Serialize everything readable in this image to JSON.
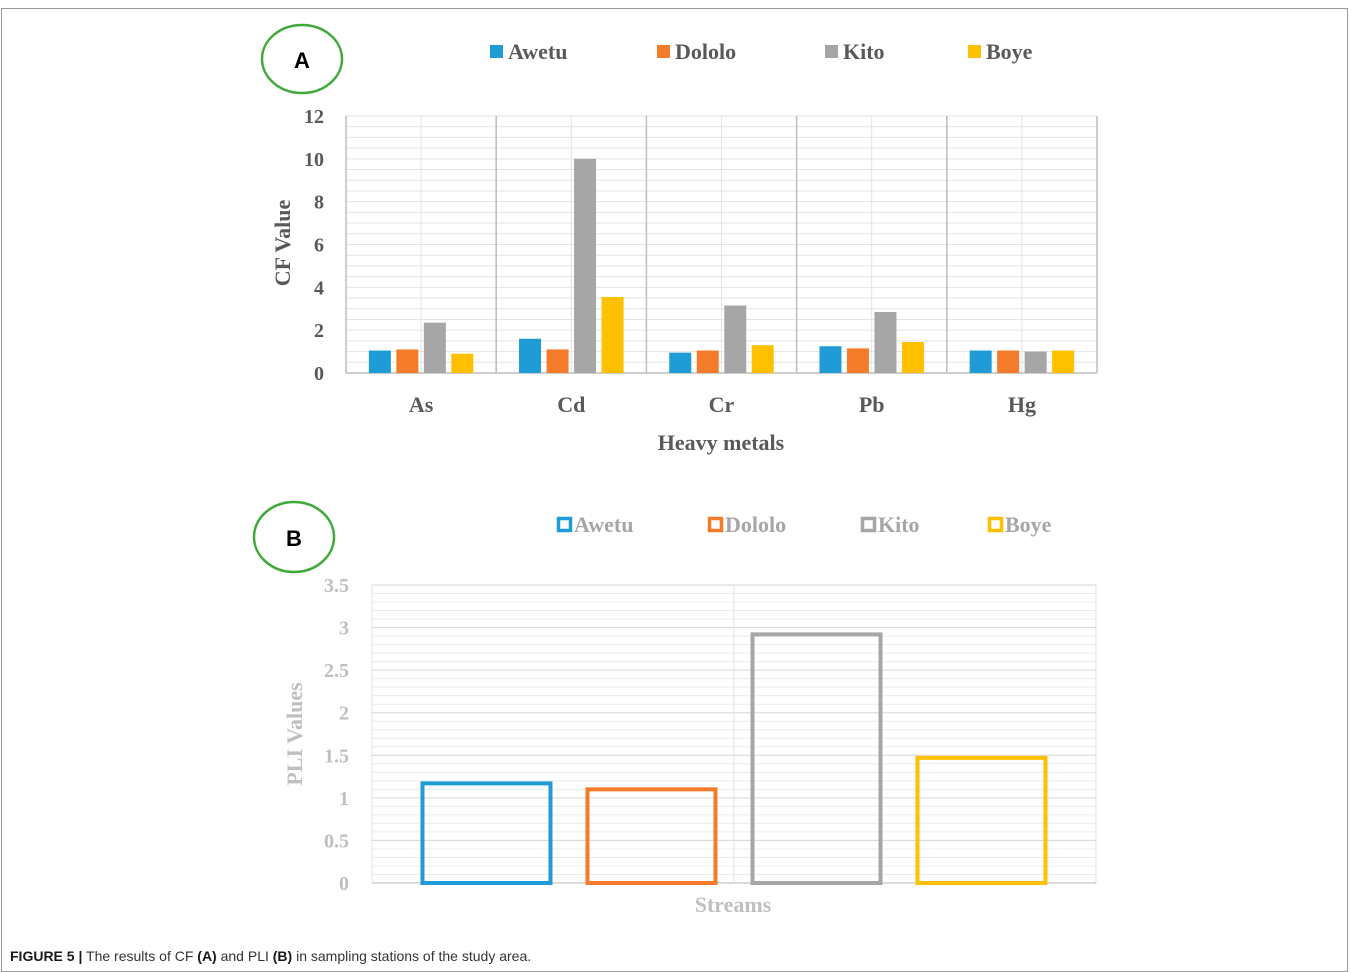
{
  "figure": {
    "caption_label": "FIGURE 5 |",
    "caption_pre": "The results of CF",
    "caption_a": "(A)",
    "caption_mid": "and PLI",
    "caption_b": "(B)",
    "caption_post": "in sampling stations of the study area."
  },
  "colors": {
    "Awetu": "#1f9bd6",
    "Dololo": "#f47b2a",
    "Kito": "#a6a6a6",
    "Boye": "#ffc000",
    "panel_circle": "#3fa93a",
    "grid": "#dcdcdc",
    "text": "#595959"
  },
  "chart_data": [
    {
      "panel": "A",
      "type": "bar",
      "title": "",
      "xlabel": "Heavy metals",
      "ylabel": "CF Value",
      "ylim": [
        0,
        12
      ],
      "yticks": [
        "0",
        "2",
        "4",
        "6",
        "8",
        "10",
        "12"
      ],
      "grid": true,
      "legend_position": "top",
      "categories": [
        "As",
        "Cd",
        "Cr",
        "Pb",
        "Hg"
      ],
      "series": [
        {
          "name": "Awetu",
          "values": [
            1.05,
            1.6,
            0.95,
            1.25,
            1.05
          ]
        },
        {
          "name": "Dololo",
          "values": [
            1.1,
            1.1,
            1.05,
            1.15,
            1.05
          ]
        },
        {
          "name": "Kito",
          "values": [
            2.35,
            10.0,
            3.15,
            2.85,
            1.0
          ]
        },
        {
          "name": "Boye",
          "values": [
            0.9,
            3.55,
            1.3,
            1.45,
            1.05
          ]
        }
      ]
    },
    {
      "panel": "B",
      "type": "bar",
      "style": "outlined",
      "title": "",
      "xlabel": "Streams",
      "ylabel": "PLI Values",
      "ylim": [
        0,
        3.5
      ],
      "yticks": [
        "0",
        "0.5",
        "1",
        "1.5",
        "2",
        "2.5",
        "3",
        "3.5"
      ],
      "grid": true,
      "legend_position": "top",
      "series": [
        {
          "name": "Awetu",
          "values": [
            1.17
          ]
        },
        {
          "name": "Dololo",
          "values": [
            1.1
          ]
        },
        {
          "name": "Kito",
          "values": [
            2.92
          ]
        },
        {
          "name": "Boye",
          "values": [
            1.47
          ]
        }
      ]
    }
  ]
}
